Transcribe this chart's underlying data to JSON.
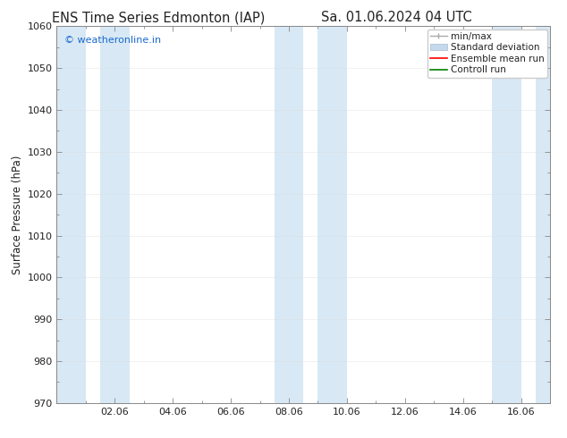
{
  "title_left": "ENS Time Series Edmonton (IAP)",
  "title_right": "Sa. 01.06.2024 04 UTC",
  "ylabel": "Surface Pressure (hPa)",
  "ylim": [
    970,
    1060
  ],
  "yticks": [
    970,
    980,
    990,
    1000,
    1010,
    1020,
    1030,
    1040,
    1050,
    1060
  ],
  "xtick_labels": [
    "02.06",
    "04.06",
    "06.06",
    "08.06",
    "10.06",
    "12.06",
    "14.06",
    "16.06"
  ],
  "xtick_positions": [
    2,
    4,
    6,
    8,
    10,
    12,
    14,
    16
  ],
  "xlim": [
    0,
    17
  ],
  "watermark": "© weatheronline.in",
  "watermark_color": "#1a6acc",
  "bg_color": "#ffffff",
  "plot_bg_color": "#ffffff",
  "shaded_band_color": "#d8e8f5",
  "shaded_columns": [
    {
      "x_start": 0,
      "x_end": 1
    },
    {
      "x_start": 1.5,
      "x_end": 2.5
    },
    {
      "x_start": 7.5,
      "x_end": 8.5
    },
    {
      "x_start": 9,
      "x_end": 10
    },
    {
      "x_start": 15,
      "x_end": 16
    },
    {
      "x_start": 16.5,
      "x_end": 17
    }
  ],
  "legend_entries": [
    {
      "label": "min/max",
      "color": "#aaaaaa",
      "style": "errorbar"
    },
    {
      "label": "Standard deviation",
      "color": "#c5d9ec",
      "style": "box"
    },
    {
      "label": "Ensemble mean run",
      "color": "#ff0000",
      "style": "line"
    },
    {
      "label": "Controll run",
      "color": "#008000",
      "style": "line"
    }
  ],
  "grid_color": "#dddddd",
  "spine_color": "#888888",
  "font_color": "#222222",
  "title_fontsize": 10.5,
  "label_fontsize": 8.5,
  "tick_fontsize": 8,
  "legend_fontsize": 7.5
}
